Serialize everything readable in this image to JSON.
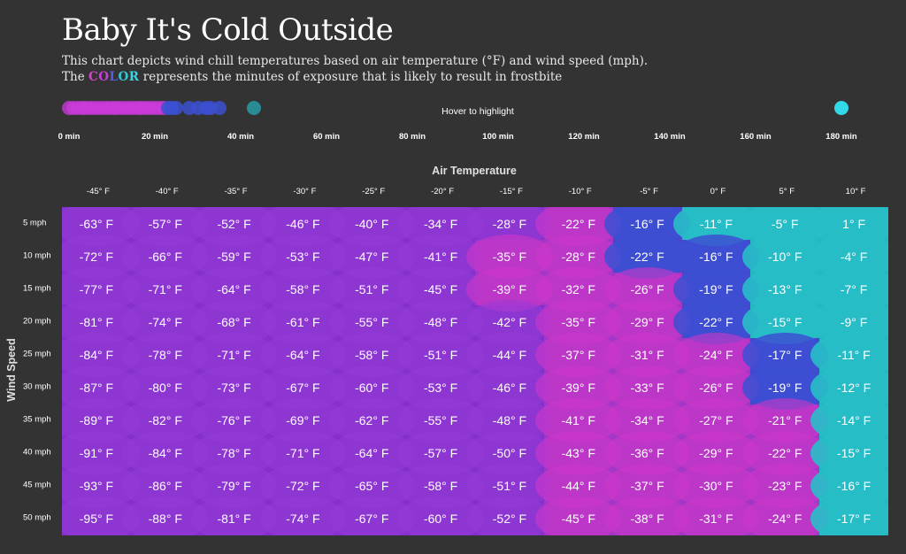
{
  "title": "Baby It's Cold Outside",
  "subtitle_line1": "This chart depicts wind chill temperatures based on air temperature (°F) and wind speed (mph).",
  "subtitle_line2_pre": "The ",
  "subtitle_color_word": "COLOR",
  "subtitle_line2_post": " represents the minutes of exposure that is likely to result in frostbite",
  "hover_text": "Hover to highlight",
  "legend": {
    "ticks": [
      "0 min",
      "20 min",
      "40 min",
      "60 min",
      "80 min",
      "100 min",
      "120 min",
      "140 min",
      "160 min",
      "180 min"
    ],
    "minutes": [
      0,
      20,
      40,
      60,
      80,
      100,
      120,
      140,
      160,
      180
    ],
    "dots_minutes": [
      0,
      1,
      2,
      3,
      4,
      5,
      6,
      7,
      8,
      9,
      10,
      11,
      12,
      13,
      14,
      15,
      16,
      17,
      18,
      19,
      20,
      21,
      22,
      23,
      24,
      25,
      28,
      30,
      32,
      33,
      35,
      43,
      180
    ]
  },
  "colors": {
    "background": "#333333",
    "cell_bg": "#8a2fd0",
    "magenta": "#cc36c8",
    "blue": "#3a4fd0",
    "teal": "#28bcc8",
    "cyan": "#33d8e8"
  },
  "chart_data": {
    "type": "heatmap",
    "title": "Baby It's Cold Outside",
    "xlabel": "Air Temperature",
    "ylabel": "Wind Speed",
    "x": [
      "-45° F",
      "-40° F",
      "-35° F",
      "-30° F",
      "-25° F",
      "-20° F",
      "-15° F",
      "-10° F",
      "-5° F",
      "0° F",
      "5° F",
      "10° F"
    ],
    "y": [
      "5 mph",
      "10 mph",
      "15 mph",
      "20 mph",
      "25 mph",
      "30 mph",
      "35 mph",
      "40 mph",
      "45 mph",
      "50 mph"
    ],
    "labels": [
      [
        "-63° F",
        "-57° F",
        "-52° F",
        "-46° F",
        "-40° F",
        "-34° F",
        "-28° F",
        "-22° F",
        "-16° F",
        "-11° F",
        "-5° F",
        "1° F"
      ],
      [
        "-72° F",
        "-66° F",
        "-59° F",
        "-53° F",
        "-47° F",
        "-41° F",
        "-35° F",
        "-28° F",
        "-22° F",
        "-16° F",
        "-10° F",
        "-4° F"
      ],
      [
        "-77° F",
        "-71° F",
        "-64° F",
        "-58° F",
        "-51° F",
        "-45° F",
        "-39° F",
        "-32° F",
        "-26° F",
        "-19° F",
        "-13° F",
        "-7° F"
      ],
      [
        "-81° F",
        "-74° F",
        "-68° F",
        "-61° F",
        "-55° F",
        "-48° F",
        "-42° F",
        "-35° F",
        "-29° F",
        "-22° F",
        "-15° F",
        "-9° F"
      ],
      [
        "-84° F",
        "-78° F",
        "-71° F",
        "-64° F",
        "-58° F",
        "-51° F",
        "-44° F",
        "-37° F",
        "-31° F",
        "-24° F",
        "-17° F",
        "-11° F"
      ],
      [
        "-87° F",
        "-80° F",
        "-73° F",
        "-67° F",
        "-60° F",
        "-53° F",
        "-46° F",
        "-39° F",
        "-33° F",
        "-26° F",
        "-19° F",
        "-12° F"
      ],
      [
        "-89° F",
        "-82° F",
        "-76° F",
        "-69° F",
        "-62° F",
        "-55° F",
        "-48° F",
        "-41° F",
        "-34° F",
        "-27° F",
        "-21° F",
        "-14° F"
      ],
      [
        "-91° F",
        "-84° F",
        "-78° F",
        "-71° F",
        "-64° F",
        "-57° F",
        "-50° F",
        "-43° F",
        "-36° F",
        "-29° F",
        "-22° F",
        "-15° F"
      ],
      [
        "-93° F",
        "-86° F",
        "-79° F",
        "-72° F",
        "-65° F",
        "-58° F",
        "-51° F",
        "-44° F",
        "-37° F",
        "-30° F",
        "-23° F",
        "-16° F"
      ],
      [
        "-95° F",
        "-88° F",
        "-81° F",
        "-74° F",
        "-67° F",
        "-60° F",
        "-52° F",
        "-45° F",
        "-38° F",
        "-31° F",
        "-24° F",
        "-17° F"
      ]
    ],
    "frostbite_category": [
      [
        "p",
        "p",
        "p",
        "p",
        "p",
        "p",
        "p",
        "m",
        "b",
        "t",
        "t",
        "t"
      ],
      [
        "p",
        "p",
        "p",
        "p",
        "p",
        "p",
        "m",
        "m",
        "b",
        "b",
        "t",
        "t"
      ],
      [
        "p",
        "p",
        "p",
        "p",
        "p",
        "p",
        "m",
        "m",
        "m",
        "b",
        "t",
        "t"
      ],
      [
        "p",
        "p",
        "p",
        "p",
        "p",
        "p",
        "p",
        "m",
        "m",
        "b",
        "t",
        "t"
      ],
      [
        "p",
        "p",
        "p",
        "p",
        "p",
        "p",
        "p",
        "m",
        "m",
        "m",
        "b",
        "t"
      ],
      [
        "p",
        "p",
        "p",
        "p",
        "p",
        "p",
        "p",
        "m",
        "m",
        "m",
        "b",
        "t"
      ],
      [
        "p",
        "p",
        "p",
        "p",
        "p",
        "p",
        "p",
        "m",
        "m",
        "m",
        "m",
        "t"
      ],
      [
        "p",
        "p",
        "p",
        "p",
        "p",
        "p",
        "p",
        "m",
        "m",
        "m",
        "m",
        "t"
      ],
      [
        "p",
        "p",
        "p",
        "p",
        "p",
        "p",
        "p",
        "m",
        "m",
        "m",
        "m",
        "t"
      ],
      [
        "p",
        "p",
        "p",
        "p",
        "p",
        "p",
        "p",
        "m",
        "m",
        "m",
        "m",
        "t"
      ]
    ]
  }
}
